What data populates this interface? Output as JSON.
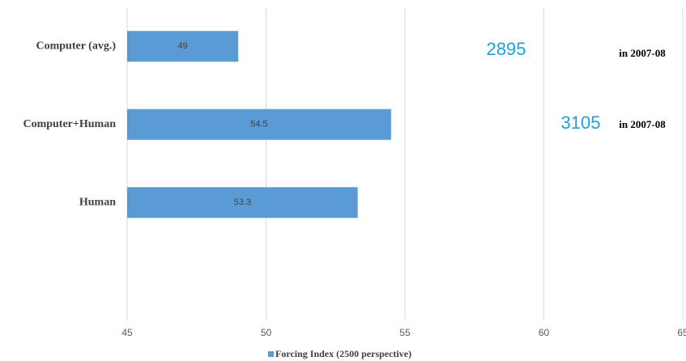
{
  "chart_data": {
    "type": "barh",
    "categories": [
      "Computer (avg.)",
      "Computer+Human",
      "Human",
      null
    ],
    "series": [
      {
        "name": "Forcing Index (2500 perspective)",
        "color": "#5b9bd5",
        "values": [
          49,
          54.5,
          53.3,
          null
        ]
      }
    ],
    "xlim": [
      45,
      65
    ],
    "xticks": [
      45,
      50,
      55,
      60,
      65
    ],
    "grid": true,
    "legend": "bottom",
    "annotations": [
      {
        "number": "2895",
        "text": "in 2007-08"
      },
      {
        "number": "3105",
        "text": "in 2007-08"
      }
    ]
  }
}
